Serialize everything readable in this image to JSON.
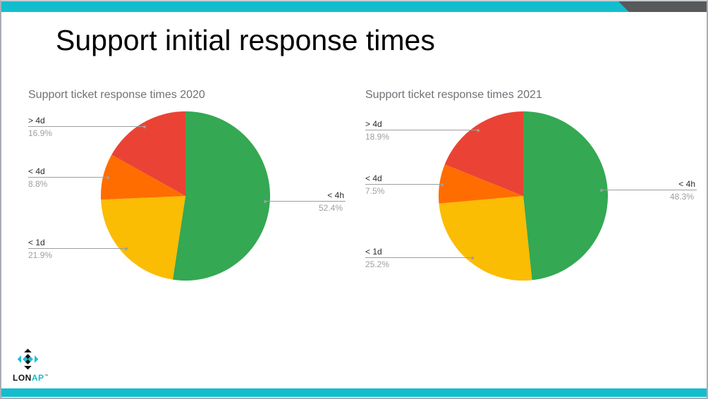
{
  "slide": {
    "title": "Support initial response times",
    "accent_color": "#14BDCE",
    "corner_color": "#58595B",
    "logo": {
      "text_dark": "LON",
      "text_cyan": "AP",
      "trademark": "™"
    }
  },
  "chart_data": [
    {
      "type": "pie",
      "title": "Support ticket response times 2020",
      "labels": [
        "< 4h",
        "< 1d",
        "< 4d",
        "> 4d"
      ],
      "values": [
        52.4,
        21.9,
        8.8,
        16.9
      ],
      "value_labels": [
        "52.4%",
        "21.9%",
        "8.8%",
        "16.9%"
      ],
      "colors": [
        "#34A853",
        "#FBBC04",
        "#FF6D01",
        "#EA4335"
      ],
      "start_angle": 0,
      "direction": "clockwise",
      "legend": "outside-callout-labels",
      "unit": "percent"
    },
    {
      "type": "pie",
      "title": "Support ticket response times 2021",
      "labels": [
        "< 4h",
        "< 1d",
        "< 4d",
        "> 4d"
      ],
      "values": [
        48.3,
        25.2,
        7.5,
        18.9
      ],
      "value_labels": [
        "48.3%",
        "25.2%",
        "7.5%",
        "18.9%"
      ],
      "colors": [
        "#34A853",
        "#FBBC04",
        "#FF6D01",
        "#EA4335"
      ],
      "start_angle": 0,
      "direction": "clockwise",
      "legend": "outside-callout-labels",
      "unit": "percent"
    }
  ]
}
